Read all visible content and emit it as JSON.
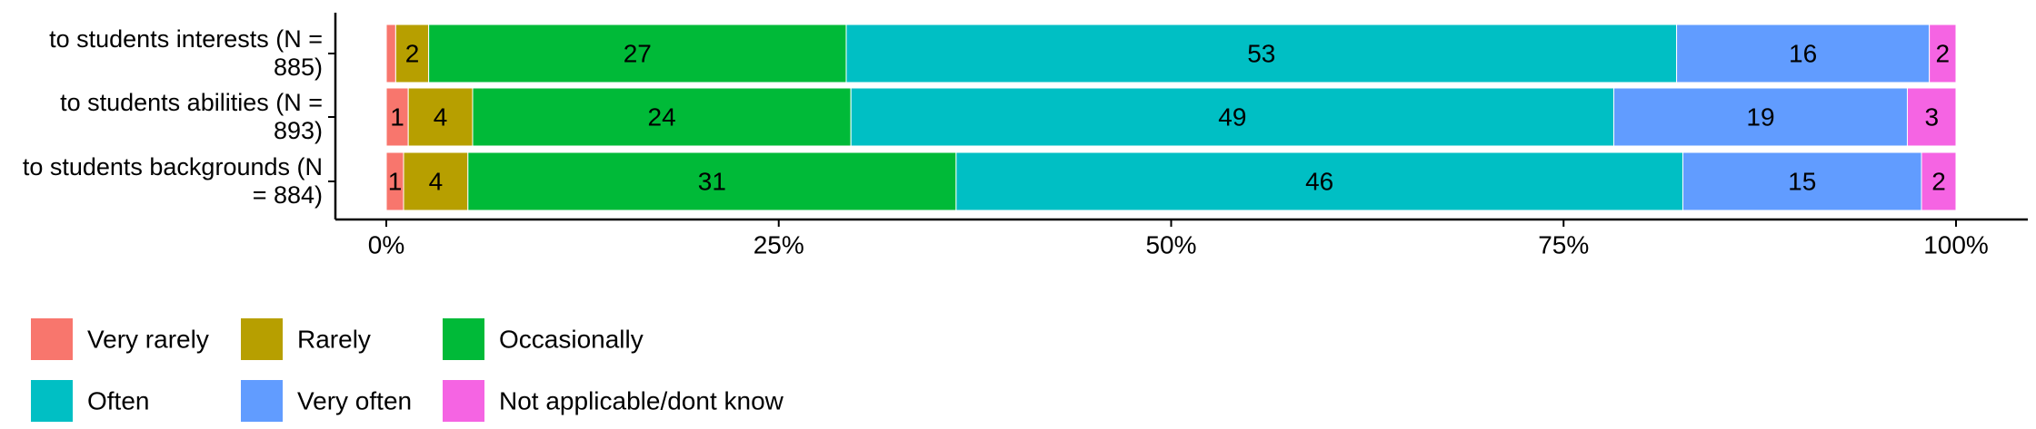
{
  "chart_data": {
    "type": "stacked-bar-horizontal",
    "categories": [
      "to students interests (N = 885)",
      "to students abilities (N = 893)",
      "to students backgrounds (N = 884)"
    ],
    "series": [
      {
        "name": "Very rarely",
        "color": "#F8766D",
        "values": [
          0.6,
          1.4,
          1.1
        ],
        "value_labels": [
          null,
          "1",
          "1"
        ]
      },
      {
        "name": "Rarely",
        "color": "#B79F00",
        "values": [
          2.1,
          4.1,
          4.1
        ],
        "value_labels": [
          "2",
          "4",
          "4"
        ]
      },
      {
        "name": "Occasionally",
        "color": "#00BA38",
        "values": [
          26.6,
          24.1,
          31.1
        ],
        "value_labels": [
          "27",
          "24",
          "31"
        ]
      },
      {
        "name": "Often",
        "color": "#00BFC4",
        "values": [
          52.9,
          48.6,
          46.3
        ],
        "value_labels": [
          "53",
          "49",
          "46"
        ]
      },
      {
        "name": "Very often",
        "color": "#619CFF",
        "values": [
          16.1,
          18.7,
          15.2
        ],
        "value_labels": [
          "16",
          "19",
          "15"
        ]
      },
      {
        "name": "Not applicable/dont know",
        "color": "#F564E3",
        "values": [
          1.7,
          3.1,
          2.2
        ],
        "value_labels": [
          "2",
          "3",
          "2"
        ]
      }
    ],
    "xlim": [
      0,
      100
    ],
    "xticks": [
      {
        "value": 0,
        "label": "0%"
      },
      {
        "value": 25,
        "label": "25%"
      },
      {
        "value": 50,
        "label": "50%"
      },
      {
        "value": 75,
        "label": "75%"
      },
      {
        "value": 100,
        "label": "100%"
      }
    ],
    "legend": "bottom-left"
  }
}
